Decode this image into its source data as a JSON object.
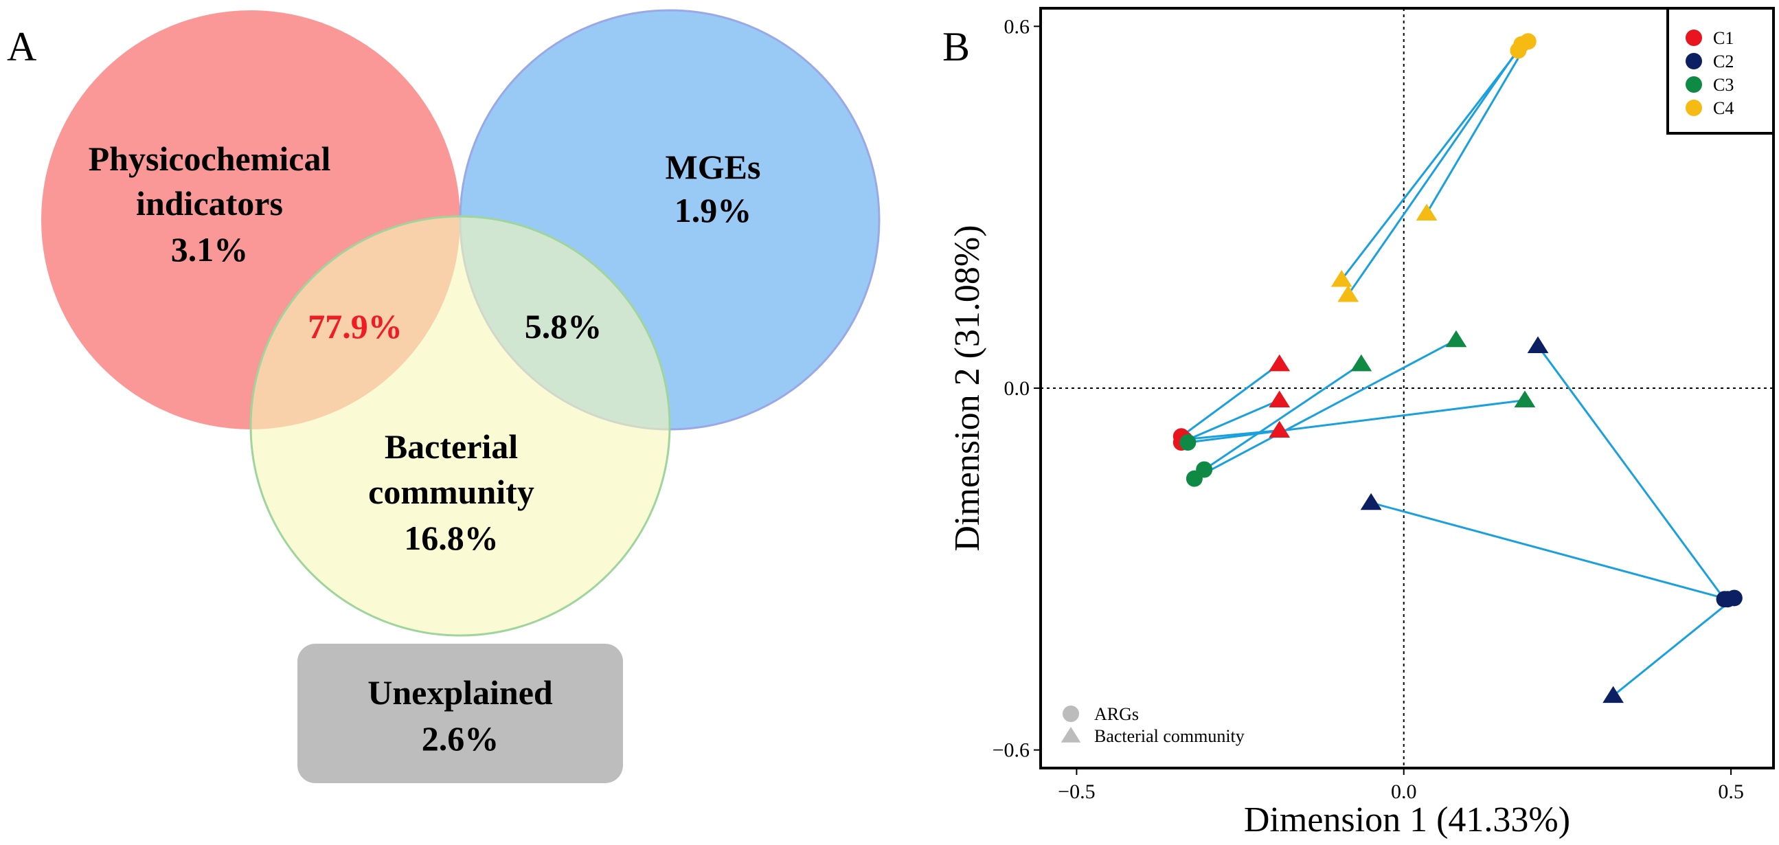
{
  "panels": {
    "a_label": "A",
    "b_label": "B"
  },
  "colors": {
    "physico": "#f97d7d",
    "mges": "#7fbdf4",
    "bacterial": "#f6f8b8",
    "unexplained": "#bdbdbd",
    "highlight_text": "#ee1c24",
    "link": "#1ba0de",
    "c1": "#e8141e",
    "c2": "#0c1f63",
    "c3": "#0e8a45",
    "c4": "#f5bb12",
    "legend_gray": "#bcbcbc"
  },
  "chart_data": [
    {
      "type": "venn",
      "sets": [
        {
          "id": "physico",
          "label_lines": [
            "Physicochemical",
            "indicators"
          ],
          "value": "3.1%"
        },
        {
          "id": "mges",
          "label_lines": [
            "MGEs"
          ],
          "value": "1.9%"
        },
        {
          "id": "bacterial",
          "label_lines": [
            "Bacterial",
            "community"
          ],
          "value": "16.8%"
        }
      ],
      "intersections": [
        {
          "sets": [
            "physico",
            "bacterial"
          ],
          "value": "77.9%"
        },
        {
          "sets": [
            "mges",
            "bacterial"
          ],
          "value": "5.8%"
        }
      ],
      "unexplained": {
        "label": "Unexplained",
        "value": "2.6%"
      }
    },
    {
      "type": "scatter",
      "title": "",
      "xlabel": "Dimension 1 (41.33%)",
      "ylabel": "Dimension 2 (31.08%)",
      "xlim": [
        -0.555,
        0.565
      ],
      "ylim": [
        -0.63,
        0.63
      ],
      "xticks": [
        -0.5,
        0.0,
        0.5
      ],
      "xtick_labels": [
        "−0.5",
        "0.0",
        "0.5"
      ],
      "yticks": [
        -0.6,
        0.0,
        0.6
      ],
      "ytick_labels": [
        "−0.6",
        "0.0",
        "0.6"
      ],
      "legend": {
        "placement": "top-right",
        "groups": [
          {
            "id": "c1",
            "label": "C1"
          },
          {
            "id": "c2",
            "label": "C2"
          },
          {
            "id": "c3",
            "label": "C3"
          },
          {
            "id": "c4",
            "label": "C4"
          }
        ]
      },
      "shape_legend": {
        "placement": "bottom-left",
        "items": [
          {
            "shape": "circle",
            "label": "ARGs"
          },
          {
            "shape": "triangle",
            "label": "Bacterial community"
          }
        ]
      },
      "pairs": [
        {
          "group": "c1",
          "args": [
            -0.34,
            -0.08
          ],
          "bacterial": [
            -0.19,
            0.04
          ]
        },
        {
          "group": "c1",
          "args": [
            -0.34,
            -0.09
          ],
          "bacterial": [
            -0.19,
            -0.02
          ]
        },
        {
          "group": "c1",
          "args": [
            -0.335,
            -0.085
          ],
          "bacterial": [
            -0.19,
            -0.07
          ]
        },
        {
          "group": "c2",
          "args": [
            0.49,
            -0.35
          ],
          "bacterial": [
            0.205,
            0.07
          ]
        },
        {
          "group": "c2",
          "args": [
            0.495,
            -0.35
          ],
          "bacterial": [
            -0.05,
            -0.19
          ]
        },
        {
          "group": "c2",
          "args": [
            0.505,
            -0.348
          ],
          "bacterial": [
            0.32,
            -0.51
          ]
        },
        {
          "group": "c3",
          "args": [
            -0.33,
            -0.09
          ],
          "bacterial": [
            0.185,
            -0.02
          ]
        },
        {
          "group": "c3",
          "args": [
            -0.305,
            -0.135
          ],
          "bacterial": [
            -0.065,
            0.04
          ]
        },
        {
          "group": "c3",
          "args": [
            -0.32,
            -0.15
          ],
          "bacterial": [
            0.08,
            0.08
          ]
        },
        {
          "group": "c4",
          "args": [
            0.175,
            0.56
          ],
          "bacterial": [
            -0.095,
            0.18
          ]
        },
        {
          "group": "c4",
          "args": [
            0.18,
            0.57
          ],
          "bacterial": [
            -0.085,
            0.155
          ]
        },
        {
          "group": "c4",
          "args": [
            0.19,
            0.575
          ],
          "bacterial": [
            0.035,
            0.29
          ]
        }
      ]
    }
  ]
}
